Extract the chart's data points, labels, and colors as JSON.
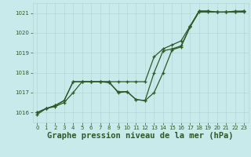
{
  "title": "Graphe pression niveau de la mer (hPa)",
  "background_color": "#c8eaea",
  "grid_color": "#b0d8d8",
  "line_color": "#2d5a27",
  "xlim": [
    -0.5,
    23.5
  ],
  "ylim": [
    1015.5,
    1021.5
  ],
  "yticks": [
    1016,
    1017,
    1018,
    1019,
    1020,
    1021
  ],
  "xticks": [
    0,
    1,
    2,
    3,
    4,
    5,
    6,
    7,
    8,
    9,
    10,
    11,
    12,
    13,
    14,
    15,
    16,
    17,
    18,
    19,
    20,
    21,
    22,
    23
  ],
  "series": [
    [
      1016.0,
      1016.2,
      1016.35,
      1016.6,
      1017.55,
      1017.55,
      1017.55,
      1017.55,
      1017.55,
      1017.55,
      1017.55,
      1017.55,
      1017.55,
      1018.8,
      1019.2,
      1019.4,
      1019.6,
      1020.35,
      1021.1,
      1021.1,
      1021.05,
      1021.05,
      1021.05,
      1021.1
    ],
    [
      1016.0,
      1016.2,
      1016.35,
      1016.6,
      1017.55,
      1017.55,
      1017.55,
      1017.55,
      1017.55,
      1017.0,
      1017.05,
      1016.65,
      1016.6,
      1018.0,
      1019.1,
      1019.2,
      1019.35,
      1020.3,
      1021.05,
      1021.05,
      1021.05,
      1021.05,
      1021.05,
      1021.05
    ],
    [
      1015.9,
      1016.2,
      1016.3,
      1016.5,
      1017.0,
      1017.55,
      1017.55,
      1017.55,
      1017.5,
      1017.05,
      1017.05,
      1016.65,
      1016.6,
      1017.0,
      1018.0,
      1019.15,
      1019.3,
      1020.3,
      1021.1,
      1021.1,
      1021.05,
      1021.05,
      1021.1,
      1021.1
    ]
  ],
  "marker": "+",
  "markersize": 3.5,
  "linewidth": 0.9,
  "title_fontsize": 7.5,
  "tick_fontsize": 5.0,
  "tick_color": "#2d5a27"
}
